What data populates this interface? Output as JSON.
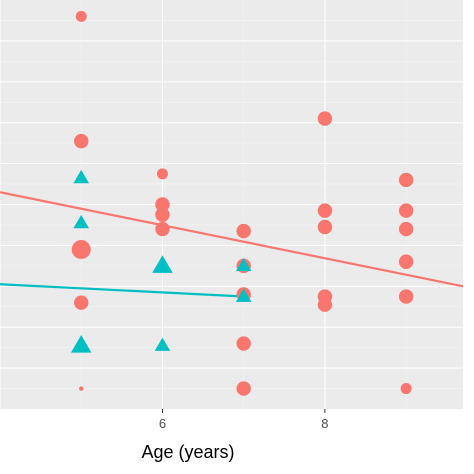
{
  "chart_data": {
    "type": "scatter",
    "title": "",
    "xlabel": "Age (years)",
    "ylabel": "",
    "x_ticks": [
      6,
      8
    ],
    "x_tick_labels": [
      "6",
      "8"
    ],
    "xlim": [
      4.0,
      9.7
    ],
    "ylim": [
      0,
      10
    ],
    "grid": true,
    "legend": "none",
    "colors": {
      "panel": "#ebebeb",
      "grid_major": "#ffffff",
      "grid_minor": "#f5f5f5",
      "series_a": "#f8766d",
      "series_b": "#00bfc4",
      "tick": "#4d4d4d"
    },
    "series": [
      {
        "shape": "circle",
        "color": "#f8766d",
        "points": [
          {
            "x": 5,
            "y": 9.6,
            "w": 2
          },
          {
            "x": 5,
            "y": 6.55,
            "w": 3
          },
          {
            "x": 5,
            "y": 3.9,
            "w": 4
          },
          {
            "x": 5,
            "y": 2.6,
            "w": 3
          },
          {
            "x": 5,
            "y": 0.5,
            "w": 1
          },
          {
            "x": 6,
            "y": 5.75,
            "w": 2
          },
          {
            "x": 6,
            "y": 5.0,
            "w": 3
          },
          {
            "x": 6,
            "y": 4.75,
            "w": 3
          },
          {
            "x": 6,
            "y": 4.4,
            "w": 3
          },
          {
            "x": 7,
            "y": 4.35,
            "w": 3
          },
          {
            "x": 7,
            "y": 3.5,
            "w": 3
          },
          {
            "x": 7,
            "y": 2.8,
            "w": 3
          },
          {
            "x": 7,
            "y": 1.6,
            "w": 3
          },
          {
            "x": 7,
            "y": 0.5,
            "w": 3
          },
          {
            "x": 8,
            "y": 7.1,
            "w": 3
          },
          {
            "x": 8,
            "y": 4.85,
            "w": 3
          },
          {
            "x": 8,
            "y": 4.45,
            "w": 3
          },
          {
            "x": 8,
            "y": 2.75,
            "w": 3
          },
          {
            "x": 8,
            "y": 2.55,
            "w": 3
          },
          {
            "x": 9,
            "y": 5.6,
            "w": 3
          },
          {
            "x": 9,
            "y": 4.85,
            "w": 3
          },
          {
            "x": 9,
            "y": 4.4,
            "w": 3
          },
          {
            "x": 9,
            "y": 3.6,
            "w": 3
          },
          {
            "x": 9,
            "y": 2.75,
            "w": 3
          },
          {
            "x": 9,
            "y": 0.5,
            "w": 2
          }
        ],
        "trend": {
          "x": [
            4.0,
            9.7
          ],
          "y": [
            5.3,
            3.0
          ]
        }
      },
      {
        "shape": "triangle",
        "color": "#00bfc4",
        "points": [
          {
            "x": 5,
            "y": 5.65,
            "w": 3
          },
          {
            "x": 5,
            "y": 4.55,
            "w": 3
          },
          {
            "x": 5,
            "y": 1.55,
            "w": 4
          },
          {
            "x": 6,
            "y": 3.5,
            "w": 4
          },
          {
            "x": 6,
            "y": 1.55,
            "w": 3
          },
          {
            "x": 7,
            "y": 3.5,
            "w": 3
          },
          {
            "x": 7,
            "y": 2.75,
            "w": 3
          }
        ],
        "trend": {
          "x": [
            4.0,
            7.0
          ],
          "y": [
            3.05,
            2.75
          ]
        }
      }
    ]
  }
}
